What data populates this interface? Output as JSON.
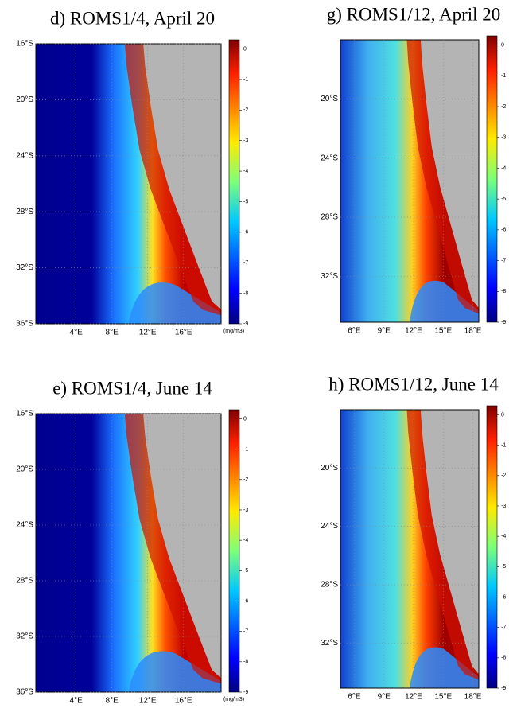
{
  "chart_data": [
    {
      "type": "heatmap",
      "title": "d)  ROMS1/4,  April 20",
      "xlim": [
        -0.5,
        20.2
      ],
      "ylim": [
        -36,
        -16
      ],
      "xticks": [
        {
          "value": 4,
          "label": "4°E"
        },
        {
          "value": 8,
          "label": "8°E"
        },
        {
          "value": 12,
          "label": "12°E"
        },
        {
          "value": 16,
          "label": "16°E"
        }
      ],
      "yticks": [
        {
          "value": -16,
          "label": "16°S"
        },
        {
          "value": -20,
          "label": "20°S"
        },
        {
          "value": -24,
          "label": "24°S"
        },
        {
          "value": -28,
          "label": "28°S"
        },
        {
          "value": -32,
          "label": "32°S"
        },
        {
          "value": -36,
          "label": "36°S"
        }
      ],
      "clim": [
        -9,
        0.3
      ],
      "cticks": [
        0,
        -1,
        -2,
        -3,
        -4,
        -5,
        -6,
        -7,
        -8,
        -9
      ],
      "clabel": "(mg/m3)"
    },
    {
      "type": "heatmap",
      "title": "g)  ROMS1/12,  April 20",
      "xlim": [
        4.6,
        18.6
      ],
      "ylim": [
        -35.1,
        -16
      ],
      "xticks": [
        {
          "value": 6,
          "label": "6°E"
        },
        {
          "value": 9,
          "label": "9°E"
        },
        {
          "value": 12,
          "label": "12°E"
        },
        {
          "value": 15,
          "label": "15°E"
        },
        {
          "value": 18,
          "label": "18°E"
        }
      ],
      "yticks": [
        {
          "value": -20,
          "label": "20°S"
        },
        {
          "value": -24,
          "label": "24°S"
        },
        {
          "value": -28,
          "label": "28°S"
        },
        {
          "value": -32,
          "label": "32°S"
        }
      ],
      "clim": [
        -9,
        0.3
      ],
      "cticks": [
        0,
        -1,
        -2,
        -3,
        -4,
        -5,
        -6,
        -7,
        -8,
        -9
      ]
    },
    {
      "type": "heatmap",
      "title": "e)  ROMS1/4,   June 14",
      "xlim": [
        -0.5,
        20.2
      ],
      "ylim": [
        -36,
        -16
      ],
      "xticks": [
        {
          "value": 4,
          "label": "4°E"
        },
        {
          "value": 8,
          "label": "8°E"
        },
        {
          "value": 12,
          "label": "12°E"
        },
        {
          "value": 16,
          "label": "16°E"
        }
      ],
      "yticks": [
        {
          "value": -16,
          "label": "16°S"
        },
        {
          "value": -20,
          "label": "20°S"
        },
        {
          "value": -24,
          "label": "24°S"
        },
        {
          "value": -28,
          "label": "28°S"
        },
        {
          "value": -32,
          "label": "32°S"
        },
        {
          "value": -36,
          "label": "36°S"
        }
      ],
      "clim": [
        -9,
        0.3
      ],
      "cticks": [
        0,
        -1,
        -2,
        -3,
        -4,
        -5,
        -6,
        -7,
        -8,
        -9
      ],
      "clabel": "(mg/m3)"
    },
    {
      "type": "heatmap",
      "title": "h)  ROMS1/12,  June 14",
      "xlim": [
        4.6,
        18.6
      ],
      "ylim": [
        -35.1,
        -16
      ],
      "xticks": [
        {
          "value": 6,
          "label": "6°E"
        },
        {
          "value": 9,
          "label": "9°E"
        },
        {
          "value": 12,
          "label": "12°E"
        },
        {
          "value": 15,
          "label": "15°E"
        },
        {
          "value": 18,
          "label": "18°E"
        }
      ],
      "yticks": [
        {
          "value": -20,
          "label": "20°S"
        },
        {
          "value": -24,
          "label": "24°S"
        },
        {
          "value": -28,
          "label": "28°S"
        },
        {
          "value": -32,
          "label": "32°S"
        }
      ],
      "clim": [
        -9,
        0.3
      ],
      "cticks": [
        0,
        -1,
        -2,
        -3,
        -4,
        -5,
        -6,
        -7,
        -8,
        -9
      ]
    }
  ]
}
